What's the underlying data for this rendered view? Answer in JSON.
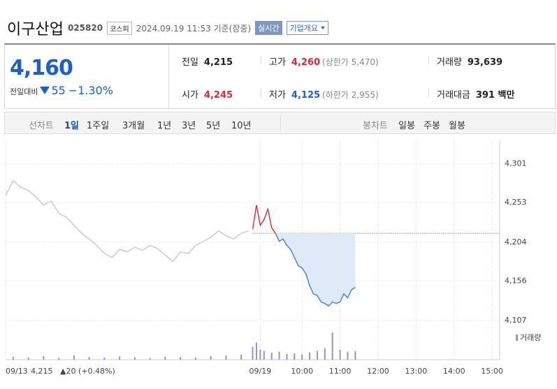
{
  "header": {
    "title": "이구산업",
    "code": "025820",
    "market": "코스피",
    "timestamp": "2024.09.19 11:53 기준(장중)",
    "realtime": "실시간",
    "company": "기업개요"
  },
  "quote": {
    "price": "4,160",
    "change_label": "전일대비",
    "change": "55",
    "change_pct": "−1.30%",
    "cells": [
      {
        "label": "전일",
        "value": "4,215"
      },
      {
        "label": "고가",
        "value": "4,260",
        "note": "(상한가 5,470)"
      },
      {
        "label": "거래량",
        "value": "93,639"
      },
      {
        "label": "시가",
        "value": "4,245"
      },
      {
        "label": "저가",
        "value": "4,125",
        "note": "(하한가 2,955)"
      },
      {
        "label": "거래대금",
        "value": "391 백만"
      }
    ]
  },
  "tabs": {
    "line_label": "선차트",
    "line_periods": [
      "1일",
      "1주일",
      "3개월",
      "1년",
      "3년",
      "5년",
      "10년"
    ],
    "candle_label": "봉차트",
    "candle_periods": [
      "일봉",
      "주봉",
      "월봉"
    ]
  },
  "footer": {
    "prev_close": "4,215",
    "prev_change": "▲20 (+0.48%)"
  },
  "chart_data": {
    "type": "line",
    "xlim": [
      0,
      130
    ],
    "ylim": [
      4100,
      4331
    ],
    "y2lim": [
      0,
      100
    ],
    "xticks": [
      {
        "value": 0,
        "label": "09/13"
      },
      {
        "value": 67,
        "label": "09/19"
      },
      {
        "value": 78,
        "label": "10:00"
      },
      {
        "value": 88,
        "label": "11:00"
      },
      {
        "value": 98,
        "label": "12:00"
      },
      {
        "value": 108,
        "label": "13:00"
      },
      {
        "value": 118,
        "label": "14:00"
      },
      {
        "value": 128,
        "label": "15:00"
      }
    ],
    "yticks": [
      {
        "value": 4301,
        "label": "4,301"
      },
      {
        "value": 4253,
        "label": "4,253"
      },
      {
        "value": 4204,
        "label": "4,204"
      },
      {
        "value": 4156,
        "label": "4,156"
      },
      {
        "value": 4107,
        "label": "4,107"
      }
    ],
    "grid": true,
    "baseline": 4215,
    "series": [
      {
        "color": "#c8c8c8",
        "x": [
          0,
          2,
          4,
          6,
          8,
          10,
          12,
          14,
          16,
          18,
          20,
          22,
          24,
          26,
          28,
          30,
          32,
          34,
          36,
          38,
          40,
          42,
          44,
          46,
          48,
          50,
          52,
          54,
          56,
          58,
          60,
          62,
          64
        ],
        "values": [
          4262,
          4280,
          4272,
          4268,
          4260,
          4250,
          4255,
          4240,
          4235,
          4225,
          4215,
          4208,
          4200,
          4190,
          4185,
          4195,
          4192,
          4198,
          4194,
          4200,
          4196,
          4188,
          4180,
          4192,
          4190,
          4200,
          4205,
          4210,
          4218,
          4212,
          4208,
          4215,
          4218
        ]
      },
      {
        "color": "#e5243b",
        "x": [
          65,
          66,
          67,
          68,
          69,
          70,
          71
        ],
        "values": [
          4220,
          4250,
          4225,
          4232,
          4245,
          4222,
          4215
        ]
      },
      {
        "color": "#3d7fd6",
        "x": [
          71,
          72,
          73,
          74,
          75,
          76,
          77,
          78,
          79,
          80,
          81,
          82,
          83,
          84,
          85,
          86,
          87,
          88,
          89,
          90,
          91,
          92
        ],
        "values": [
          4215,
          4205,
          4208,
          4200,
          4195,
          4185,
          4175,
          4172,
          4165,
          4150,
          4140,
          4138,
          4130,
          4128,
          4125,
          4130,
          4128,
          4130,
          4140,
          4135,
          4145,
          4148
        ],
        "fill": "#dfe9f8"
      },
      {
        "name": "거래량",
        "type": "bar",
        "axis": "y2",
        "color": "#9c8fcf",
        "x": [
          2,
          6,
          10,
          14,
          18,
          22,
          26,
          30,
          34,
          38,
          42,
          46,
          50,
          54,
          58,
          62,
          65,
          66,
          67,
          68,
          70,
          72,
          74,
          76,
          78,
          80,
          82,
          84,
          86,
          88,
          90,
          92
        ],
        "values": [
          10,
          8,
          12,
          6,
          15,
          9,
          7,
          11,
          8,
          6,
          10,
          9,
          7,
          12,
          14,
          18,
          45,
          60,
          35,
          30,
          25,
          28,
          20,
          22,
          18,
          26,
          30,
          40,
          95,
          35,
          28,
          30
        ]
      }
    ]
  }
}
